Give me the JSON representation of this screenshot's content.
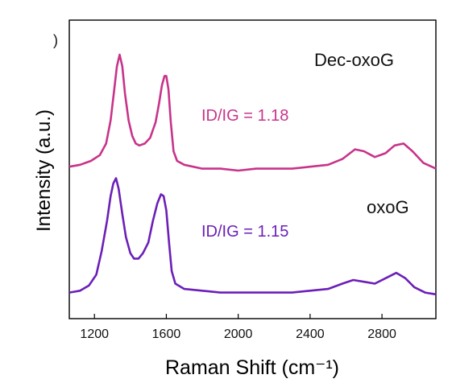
{
  "panel_mark": ")",
  "chart_data": {
    "type": "line",
    "title": "",
    "xlabel": "Raman Shift (cm⁻¹)",
    "ylabel": "Intensity (a.u.)",
    "xlim": [
      1060,
      3100
    ],
    "x_ticks": [
      1200,
      1600,
      2000,
      2400,
      2800
    ],
    "y_ticks_shown": false,
    "grid": false,
    "legend": "none",
    "series": [
      {
        "name": "Dec-oxoG",
        "color": "#c8338a",
        "annotation": "ID/IG = 1.18",
        "points": [
          [
            1060,
            0.02
          ],
          [
            1120,
            0.03
          ],
          [
            1180,
            0.05
          ],
          [
            1230,
            0.08
          ],
          [
            1265,
            0.14
          ],
          [
            1290,
            0.26
          ],
          [
            1310,
            0.42
          ],
          [
            1325,
            0.54
          ],
          [
            1340,
            0.6
          ],
          [
            1355,
            0.54
          ],
          [
            1370,
            0.4
          ],
          [
            1390,
            0.26
          ],
          [
            1410,
            0.18
          ],
          [
            1430,
            0.14
          ],
          [
            1450,
            0.13
          ],
          [
            1480,
            0.14
          ],
          [
            1510,
            0.17
          ],
          [
            1540,
            0.25
          ],
          [
            1560,
            0.35
          ],
          [
            1575,
            0.44
          ],
          [
            1590,
            0.49
          ],
          [
            1600,
            0.49
          ],
          [
            1612,
            0.42
          ],
          [
            1625,
            0.25
          ],
          [
            1640,
            0.1
          ],
          [
            1660,
            0.05
          ],
          [
            1700,
            0.03
          ],
          [
            1800,
            0.01
          ],
          [
            1900,
            0.01
          ],
          [
            2000,
            0.0
          ],
          [
            2100,
            0.01
          ],
          [
            2200,
            0.01
          ],
          [
            2300,
            0.01
          ],
          [
            2400,
            0.02
          ],
          [
            2500,
            0.03
          ],
          [
            2580,
            0.06
          ],
          [
            2650,
            0.11
          ],
          [
            2700,
            0.1
          ],
          [
            2760,
            0.07
          ],
          [
            2820,
            0.09
          ],
          [
            2870,
            0.13
          ],
          [
            2920,
            0.14
          ],
          [
            2970,
            0.1
          ],
          [
            3030,
            0.04
          ],
          [
            3100,
            0.01
          ]
        ]
      },
      {
        "name": "oxoG",
        "color": "#6b1fb8",
        "annotation": "ID/IG = 1.15",
        "points": [
          [
            1060,
            0.02
          ],
          [
            1120,
            0.03
          ],
          [
            1170,
            0.06
          ],
          [
            1210,
            0.12
          ],
          [
            1240,
            0.25
          ],
          [
            1270,
            0.42
          ],
          [
            1290,
            0.56
          ],
          [
            1305,
            0.63
          ],
          [
            1320,
            0.66
          ],
          [
            1335,
            0.6
          ],
          [
            1355,
            0.46
          ],
          [
            1375,
            0.33
          ],
          [
            1400,
            0.24
          ],
          [
            1420,
            0.21
          ],
          [
            1445,
            0.21
          ],
          [
            1470,
            0.24
          ],
          [
            1500,
            0.3
          ],
          [
            1525,
            0.42
          ],
          [
            1550,
            0.52
          ],
          [
            1570,
            0.57
          ],
          [
            1585,
            0.56
          ],
          [
            1600,
            0.48
          ],
          [
            1615,
            0.3
          ],
          [
            1630,
            0.14
          ],
          [
            1650,
            0.07
          ],
          [
            1700,
            0.04
          ],
          [
            1800,
            0.03
          ],
          [
            1900,
            0.02
          ],
          [
            2000,
            0.02
          ],
          [
            2100,
            0.02
          ],
          [
            2200,
            0.02
          ],
          [
            2300,
            0.02
          ],
          [
            2400,
            0.03
          ],
          [
            2500,
            0.04
          ],
          [
            2580,
            0.07
          ],
          [
            2640,
            0.09
          ],
          [
            2700,
            0.08
          ],
          [
            2760,
            0.07
          ],
          [
            2820,
            0.1
          ],
          [
            2880,
            0.13
          ],
          [
            2930,
            0.1
          ],
          [
            2980,
            0.05
          ],
          [
            3040,
            0.02
          ],
          [
            3100,
            0.01
          ]
        ]
      }
    ]
  }
}
